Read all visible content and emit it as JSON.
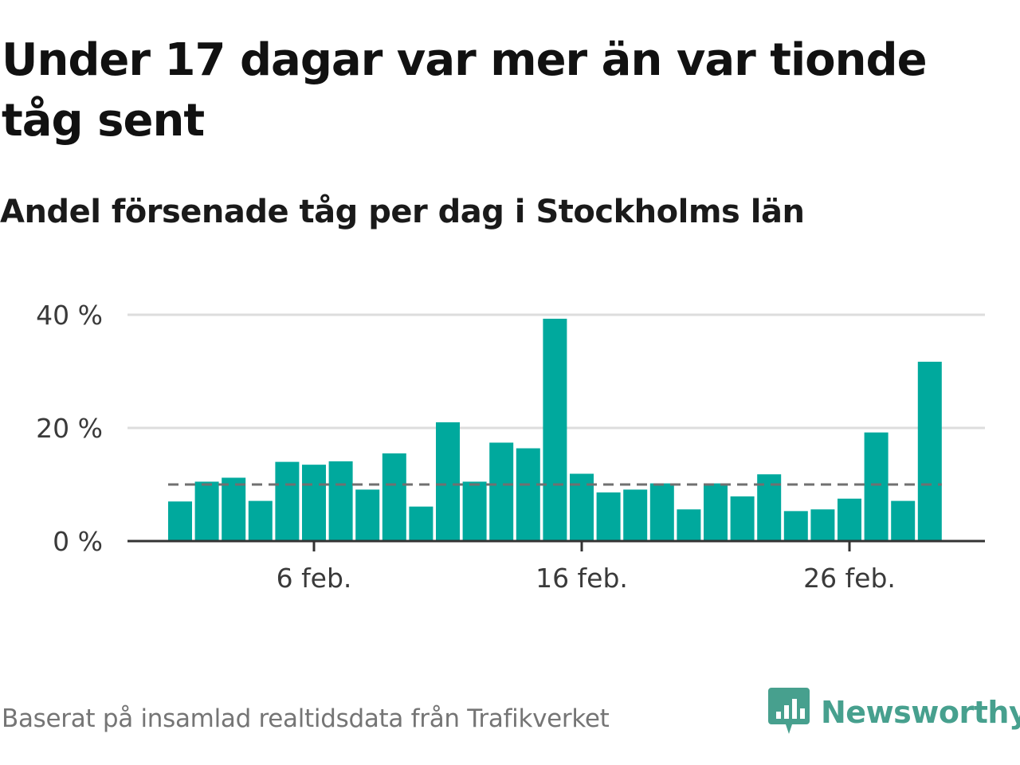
{
  "title": "Under 17 dagar var mer än var tionde tåg sent",
  "subtitle": "Andel försenade tåg per dag i Stockholms län",
  "source": "Baserat på insamlad realtidsdata från Trafikverket",
  "brand": {
    "name": "Newsworthy",
    "color": "#47a08e",
    "logo_icon": "newsworthy-bar-chart-logo-icon"
  },
  "colors": {
    "bar": "#00a99d",
    "gridline": "#dddddd",
    "baseline": "#333333",
    "reference_line": "#707070"
  },
  "chart_data": {
    "type": "bar",
    "x": [
      "1 feb.",
      "2 feb.",
      "3 feb.",
      "4 feb.",
      "5 feb.",
      "6 feb.",
      "7 feb.",
      "8 feb.",
      "9 feb.",
      "10 feb.",
      "11 feb.",
      "12 feb.",
      "13 feb.",
      "14 feb.",
      "15 feb.",
      "16 feb.",
      "17 feb.",
      "18 feb.",
      "19 feb.",
      "20 feb.",
      "21 feb.",
      "22 feb.",
      "23 feb.",
      "24 feb.",
      "25 feb.",
      "26 feb.",
      "27 feb.",
      "28 feb.",
      "29 feb."
    ],
    "values": [
      7,
      10.5,
      11.2,
      7.1,
      14,
      13.5,
      14.1,
      9.1,
      15.5,
      6.1,
      21,
      10.5,
      17.4,
      16.4,
      39.3,
      11.9,
      8.6,
      9.1,
      10.2,
      5.6,
      10.2,
      7.9,
      11.8,
      5.3,
      5.6,
      7.5,
      19.2,
      7.1,
      31.7
    ],
    "reference_line": {
      "value": 10,
      "style": "dashed"
    },
    "x_tick_labels": [
      {
        "label": "6 feb.",
        "index": 5
      },
      {
        "label": "16 feb.",
        "index": 15
      },
      {
        "label": "26 feb.",
        "index": 25
      }
    ],
    "y_ticks": [
      {
        "value": 0,
        "label": "0 %"
      },
      {
        "value": 20,
        "label": "20 %"
      },
      {
        "value": 40,
        "label": "40 %"
      }
    ],
    "ylim": [
      0,
      40
    ],
    "grid": true,
    "legend": "none"
  }
}
